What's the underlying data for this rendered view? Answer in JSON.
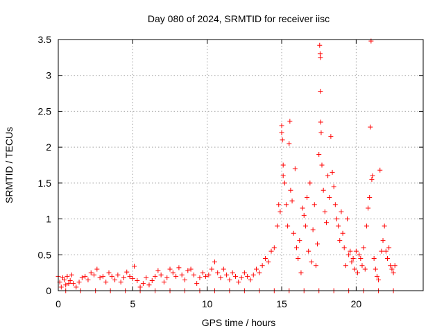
{
  "chart_data": {
    "type": "scatter",
    "title": "Day 080 of 2024, SRMTID for receiver iisc",
    "xlabel": "GPS time / hours",
    "ylabel": "SRMTID / TECUs",
    "xlim": [
      0,
      24.5
    ],
    "ylim": [
      0,
      3.5
    ],
    "xticks": [
      0,
      5,
      10,
      15,
      20
    ],
    "xtick_labels": [
      "0",
      "5",
      "10",
      "15",
      "20"
    ],
    "yticks": [
      0,
      0.5,
      1,
      1.5,
      2,
      2.5,
      3,
      3.5
    ],
    "ytick_labels": [
      "0",
      "0.5",
      "1",
      "1.5",
      "2",
      "2.5",
      "3",
      "3.5"
    ],
    "grid": true,
    "marker": "+",
    "series": [
      {
        "name": "SRMTID",
        "color": "#ff0000",
        "points": [
          [
            0.0,
            0.2
          ],
          [
            0.1,
            0.12
          ],
          [
            0.2,
            0.05
          ],
          [
            0.3,
            0.18
          ],
          [
            0.4,
            0.15
          ],
          [
            0.5,
            0.08
          ],
          [
            0.6,
            0.2
          ],
          [
            0.7,
            0.1
          ],
          [
            0.8,
            0.14
          ],
          [
            0.9,
            0.22
          ],
          [
            1.0,
            0.1
          ],
          [
            1.2,
            0.05
          ],
          [
            1.4,
            0.12
          ],
          [
            1.6,
            0.18
          ],
          [
            1.8,
            0.2
          ],
          [
            2.0,
            0.15
          ],
          [
            2.2,
            0.25
          ],
          [
            2.4,
            0.22
          ],
          [
            2.6,
            0.3
          ],
          [
            2.8,
            0.18
          ],
          [
            3.0,
            0.2
          ],
          [
            3.2,
            0.12
          ],
          [
            3.4,
            0.25
          ],
          [
            3.6,
            0.2
          ],
          [
            3.8,
            0.15
          ],
          [
            4.0,
            0.22
          ],
          [
            4.2,
            0.12
          ],
          [
            4.4,
            0.18
          ],
          [
            4.6,
            0.26
          ],
          [
            4.8,
            0.2
          ],
          [
            5.0,
            0.17
          ],
          [
            5.1,
            0.34
          ],
          [
            5.3,
            0.14
          ],
          [
            5.5,
            0.05
          ],
          [
            5.7,
            0.1
          ],
          [
            5.9,
            0.18
          ],
          [
            6.1,
            0.08
          ],
          [
            6.3,
            0.14
          ],
          [
            6.5,
            0.2
          ],
          [
            6.7,
            0.28
          ],
          [
            6.9,
            0.22
          ],
          [
            7.1,
            0.12
          ],
          [
            7.3,
            0.18
          ],
          [
            7.5,
            0.3
          ],
          [
            7.7,
            0.25
          ],
          [
            7.9,
            0.2
          ],
          [
            8.1,
            0.32
          ],
          [
            8.3,
            0.22
          ],
          [
            8.5,
            0.15
          ],
          [
            8.7,
            0.28
          ],
          [
            8.9,
            0.3
          ],
          [
            9.1,
            0.22
          ],
          [
            9.3,
            0.1
          ],
          [
            9.5,
            0.18
          ],
          [
            9.7,
            0.25
          ],
          [
            9.9,
            0.2
          ],
          [
            10.1,
            0.22
          ],
          [
            10.3,
            0.3
          ],
          [
            10.5,
            0.4
          ],
          [
            10.7,
            0.25
          ],
          [
            10.9,
            0.18
          ],
          [
            11.1,
            0.3
          ],
          [
            11.3,
            0.22
          ],
          [
            11.5,
            0.15
          ],
          [
            11.7,
            0.25
          ],
          [
            11.9,
            0.2
          ],
          [
            12.1,
            0.12
          ],
          [
            12.3,
            0.18
          ],
          [
            12.5,
            0.25
          ],
          [
            12.7,
            0.2
          ],
          [
            12.9,
            0.15
          ],
          [
            13.1,
            0.22
          ],
          [
            13.3,
            0.3
          ],
          [
            13.5,
            0.25
          ],
          [
            13.7,
            0.35
          ],
          [
            13.9,
            0.45
          ],
          [
            14.1,
            0.4
          ],
          [
            14.3,
            0.55
          ],
          [
            14.5,
            0.6
          ],
          [
            14.7,
            0.9
          ],
          [
            14.8,
            1.2
          ],
          [
            14.9,
            1.1
          ],
          [
            15.0,
            2.3
          ],
          [
            15.0,
            2.2
          ],
          [
            15.05,
            2.1
          ],
          [
            15.1,
            1.75
          ],
          [
            15.1,
            1.6
          ],
          [
            15.2,
            1.5
          ],
          [
            15.3,
            1.2
          ],
          [
            15.4,
            0.9
          ],
          [
            15.5,
            2.05
          ],
          [
            15.55,
            2.36
          ],
          [
            15.6,
            1.4
          ],
          [
            15.7,
            1.25
          ],
          [
            15.8,
            0.8
          ],
          [
            15.9,
            1.7
          ],
          [
            16.0,
            0.6
          ],
          [
            16.1,
            0.45
          ],
          [
            16.2,
            0.7
          ],
          [
            16.3,
            0.25
          ],
          [
            16.4,
            1.15
          ],
          [
            16.5,
            1.05
          ],
          [
            16.6,
            0.9
          ],
          [
            16.7,
            1.3
          ],
          [
            16.8,
            0.55
          ],
          [
            16.9,
            1.5
          ],
          [
            17.0,
            0.4
          ],
          [
            17.1,
            0.85
          ],
          [
            17.2,
            1.2
          ],
          [
            17.3,
            0.35
          ],
          [
            17.4,
            0.65
          ],
          [
            17.5,
            1.9
          ],
          [
            17.55,
            3.42
          ],
          [
            17.58,
            3.3
          ],
          [
            17.6,
            3.25
          ],
          [
            17.6,
            2.78
          ],
          [
            17.62,
            2.35
          ],
          [
            17.65,
            2.2
          ],
          [
            17.7,
            1.75
          ],
          [
            17.8,
            1.4
          ],
          [
            17.9,
            1.1
          ],
          [
            18.0,
            0.95
          ],
          [
            18.1,
            1.6
          ],
          [
            18.2,
            1.3
          ],
          [
            18.3,
            2.15
          ],
          [
            18.4,
            1.65
          ],
          [
            18.5,
            1.45
          ],
          [
            18.6,
            1.2
          ],
          [
            18.7,
            1.0
          ],
          [
            18.8,
            0.9
          ],
          [
            18.9,
            0.7
          ],
          [
            19.0,
            1.1
          ],
          [
            19.1,
            0.8
          ],
          [
            19.2,
            0.6
          ],
          [
            19.3,
            0.35
          ],
          [
            19.4,
            1.0
          ],
          [
            19.5,
            0.5
          ],
          [
            19.6,
            0.55
          ],
          [
            19.7,
            0.4
          ],
          [
            19.8,
            0.45
          ],
          [
            19.9,
            0.3
          ],
          [
            20.0,
            0.55
          ],
          [
            20.1,
            0.25
          ],
          [
            20.2,
            0.5
          ],
          [
            20.3,
            0.45
          ],
          [
            20.4,
            0.35
          ],
          [
            20.5,
            0.6
          ],
          [
            20.6,
            0.3
          ],
          [
            20.7,
            0.9
          ],
          [
            20.8,
            1.15
          ],
          [
            20.9,
            1.3
          ],
          [
            20.95,
            2.28
          ],
          [
            21.0,
            3.48
          ],
          [
            21.05,
            1.55
          ],
          [
            21.1,
            1.6
          ],
          [
            21.2,
            0.45
          ],
          [
            21.3,
            0.3
          ],
          [
            21.4,
            0.2
          ],
          [
            21.5,
            0.15
          ],
          [
            21.6,
            1.68
          ],
          [
            21.7,
            0.55
          ],
          [
            21.8,
            0.7
          ],
          [
            21.9,
            0.9
          ],
          [
            22.0,
            0.55
          ],
          [
            22.1,
            0.45
          ],
          [
            22.2,
            0.6
          ],
          [
            22.3,
            0.35
          ],
          [
            22.4,
            0.3
          ],
          [
            22.5,
            0.25
          ],
          [
            22.6,
            0.35
          ],
          [
            0.5,
            0.0
          ],
          [
            1.5,
            0.0
          ],
          [
            2.5,
            0.0
          ],
          [
            3.5,
            0.0
          ],
          [
            4.5,
            0.0
          ],
          [
            5.5,
            0.0
          ],
          [
            6.5,
            0.0
          ],
          [
            7.5,
            0.0
          ],
          [
            8.5,
            0.0
          ],
          [
            9.5,
            0.0
          ],
          [
            10.5,
            0.0
          ],
          [
            11.5,
            0.0
          ],
          [
            12.5,
            0.0
          ],
          [
            13.5,
            0.0
          ],
          [
            14.5,
            0.0
          ],
          [
            15.5,
            0.0
          ],
          [
            16.5,
            0.0
          ],
          [
            17.5,
            0.0
          ],
          [
            18.5,
            0.0
          ],
          [
            19.5,
            0.0
          ],
          [
            20.5,
            0.0
          ],
          [
            21.5,
            0.0
          ],
          [
            22.5,
            0.0
          ]
        ]
      }
    ]
  }
}
